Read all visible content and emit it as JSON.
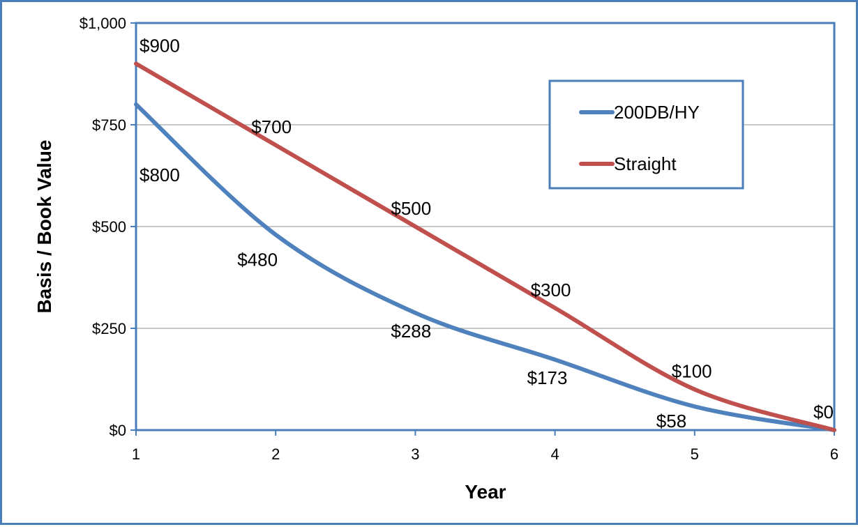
{
  "chart_data": {
    "type": "line",
    "title": "",
    "xlabel": "Year",
    "ylabel": "Basis / Book Value",
    "x": [
      1,
      2,
      3,
      4,
      5,
      6
    ],
    "x_tick_labels": [
      "1",
      "2",
      "3",
      "4",
      "5",
      "6"
    ],
    "ylim": [
      0,
      1000
    ],
    "y_ticks": [
      0,
      250,
      500,
      750,
      1000
    ],
    "y_tick_labels": [
      "$0",
      "$250",
      "$500",
      "$750",
      "$1,000"
    ],
    "grid": "horizontal",
    "legend_position": "top-right",
    "series": [
      {
        "name": "200DB/HY",
        "color": "#4f81bd",
        "values": [
          800,
          480,
          288,
          173,
          58,
          0
        ],
        "labels": [
          "$800",
          "$480",
          "$288",
          "$173",
          "$58",
          ""
        ]
      },
      {
        "name": "Straight",
        "color": "#c0504d",
        "values": [
          900,
          700,
          500,
          300,
          100,
          0
        ],
        "labels": [
          "$900",
          "$700",
          "$500",
          "$300",
          "$100",
          "$0"
        ]
      }
    ]
  }
}
